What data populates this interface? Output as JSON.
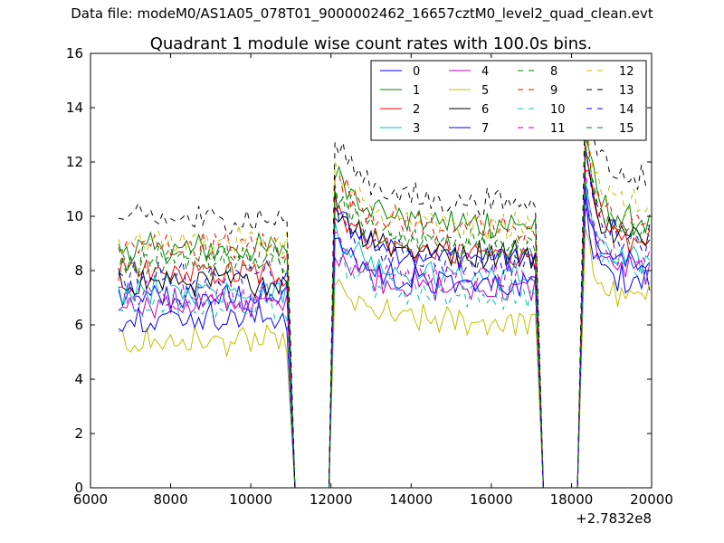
{
  "header": {
    "data_file": "Data file: modeM0/AS1A05_078T01_9000002462_16657cztM0_level2_quad_clean.evt"
  },
  "chart_data": {
    "type": "line",
    "title": "Quadrant 1 module wise count rates with 100.0s bins.",
    "xlabel": "",
    "ylabel": "",
    "x_offset_label": "+2.7832e8",
    "xlim": [
      6000,
      20000
    ],
    "ylim": [
      0,
      16
    ],
    "x_ticks": [
      6000,
      8000,
      10000,
      12000,
      14000,
      16000,
      18000,
      20000
    ],
    "y_ticks": [
      0,
      2,
      4,
      6,
      8,
      10,
      12,
      14,
      16
    ],
    "grid": false,
    "legend_position": "top-right",
    "legend_columns": 4,
    "segments": [
      {
        "start": 6700,
        "end": 10900,
        "rise_from": null,
        "drop_to": 11100
      },
      {
        "start": 12100,
        "end": 17100,
        "rise_from": 11950,
        "drop_to": 17300
      },
      {
        "start": 18350,
        "end": 19900,
        "rise_from": 18150,
        "drop_to": null
      }
    ],
    "gap_value": 0,
    "series": [
      {
        "name": "0",
        "color": "#0000ff",
        "style": "solid",
        "levels": [
          6.9,
          8.4,
          7.5
        ]
      },
      {
        "name": "1",
        "color": "#008000",
        "style": "solid",
        "levels": [
          8.7,
          9.6,
          9.7
        ]
      },
      {
        "name": "2",
        "color": "#ff0000",
        "style": "solid",
        "levels": [
          7.8,
          8.5,
          8.9
        ]
      },
      {
        "name": "3",
        "color": "#00bfbf",
        "style": "solid",
        "levels": [
          7.2,
          7.7,
          8.2
        ]
      },
      {
        "name": "4",
        "color": "#bf00bf",
        "style": "solid",
        "levels": [
          6.7,
          7.2,
          7.9
        ]
      },
      {
        "name": "5",
        "color": "#bfbf00",
        "style": "solid",
        "levels": [
          5.3,
          6.0,
          6.9
        ]
      },
      {
        "name": "6",
        "color": "#000000",
        "style": "solid",
        "levels": [
          7.5,
          8.5,
          9.1
        ]
      },
      {
        "name": "7",
        "color": "#0000ff",
        "style": "solid",
        "levels": [
          6.2,
          7.4,
          8.3
        ]
      },
      {
        "name": "8",
        "color": "#008000",
        "style": "dashed",
        "levels": [
          8.2,
          8.9,
          9.3
        ]
      },
      {
        "name": "9",
        "color": "#ff0000",
        "style": "dashed",
        "levels": [
          8.8,
          9.4,
          9.6
        ]
      },
      {
        "name": "10",
        "color": "#00bfbf",
        "style": "dashed",
        "levels": [
          6.6,
          7.0,
          8.0
        ]
      },
      {
        "name": "11",
        "color": "#bf00bf",
        "style": "dashed",
        "levels": [
          7.0,
          7.6,
          8.4
        ]
      },
      {
        "name": "12",
        "color": "#bfbf00",
        "style": "dashed",
        "levels": [
          9.0,
          9.5,
          10.3
        ]
      },
      {
        "name": "13",
        "color": "#000000",
        "style": "dashed",
        "levels": [
          9.8,
          10.4,
          11.3
        ]
      },
      {
        "name": "14",
        "color": "#0000ff",
        "style": "dashed",
        "levels": [
          7.7,
          8.2,
          9.1
        ]
      },
      {
        "name": "15",
        "color": "#008000",
        "style": "dashed",
        "levels": [
          8.3,
          8.8,
          9.4
        ]
      }
    ]
  }
}
